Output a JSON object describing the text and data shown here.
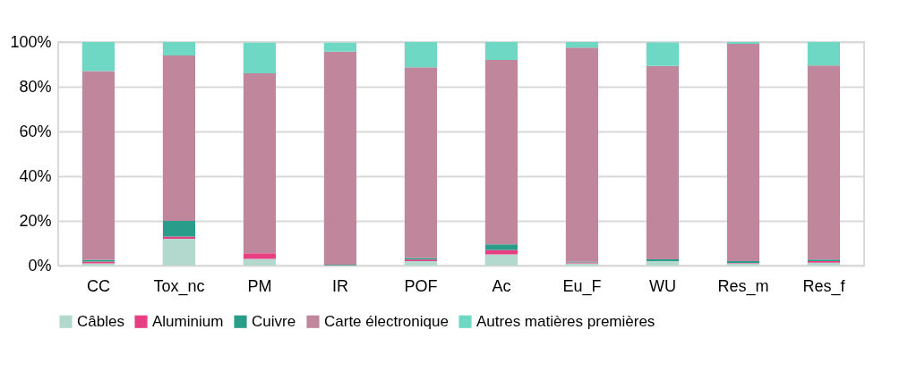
{
  "chart_data": {
    "type": "bar",
    "stacked": true,
    "categories": [
      "CC",
      "Tox_nc",
      "PM",
      "IR",
      "POF",
      "Ac",
      "Eu_F",
      "WU",
      "Res_m",
      "Res_f"
    ],
    "series": [
      {
        "name": "Câbles",
        "color": "#b3d9cf",
        "values": [
          1,
          12,
          3,
          null,
          2,
          5,
          1,
          2,
          1,
          1.3
        ]
      },
      {
        "name": "Aluminium",
        "color": "#e83e84",
        "values": [
          0.8,
          1,
          2.5,
          0.1,
          0.7,
          2,
          0.4,
          null,
          0.2,
          0.7
        ]
      },
      {
        "name": "Cuivre",
        "color": "#2a9d8a",
        "values": [
          0.8,
          7,
          null,
          0.3,
          0.7,
          2.5,
          0.3,
          0.8,
          0.8,
          0.7
        ]
      },
      {
        "name": "Carte électronique",
        "color": "#c0879c",
        "values": [
          84.4,
          74,
          80.5,
          95.3,
          85.3,
          82.5,
          95.8,
          86.5,
          97.2,
          86.8
        ]
      },
      {
        "name": "Autres matières premières",
        "color": "#6fd8c4",
        "values": [
          13,
          6,
          13.7,
          4,
          11.3,
          8,
          2.5,
          10.5,
          0.8,
          10.5
        ]
      }
    ],
    "ylim": [
      0,
      100
    ],
    "yticks": [
      {
        "value": 0,
        "label": "0%"
      },
      {
        "value": 20,
        "label": "20%"
      },
      {
        "value": 40,
        "label": "40%"
      },
      {
        "value": 60,
        "label": "60%"
      },
      {
        "value": 80,
        "label": "80%"
      },
      {
        "value": 100,
        "label": "100%"
      }
    ],
    "grid": true,
    "legend": "bottom"
  }
}
